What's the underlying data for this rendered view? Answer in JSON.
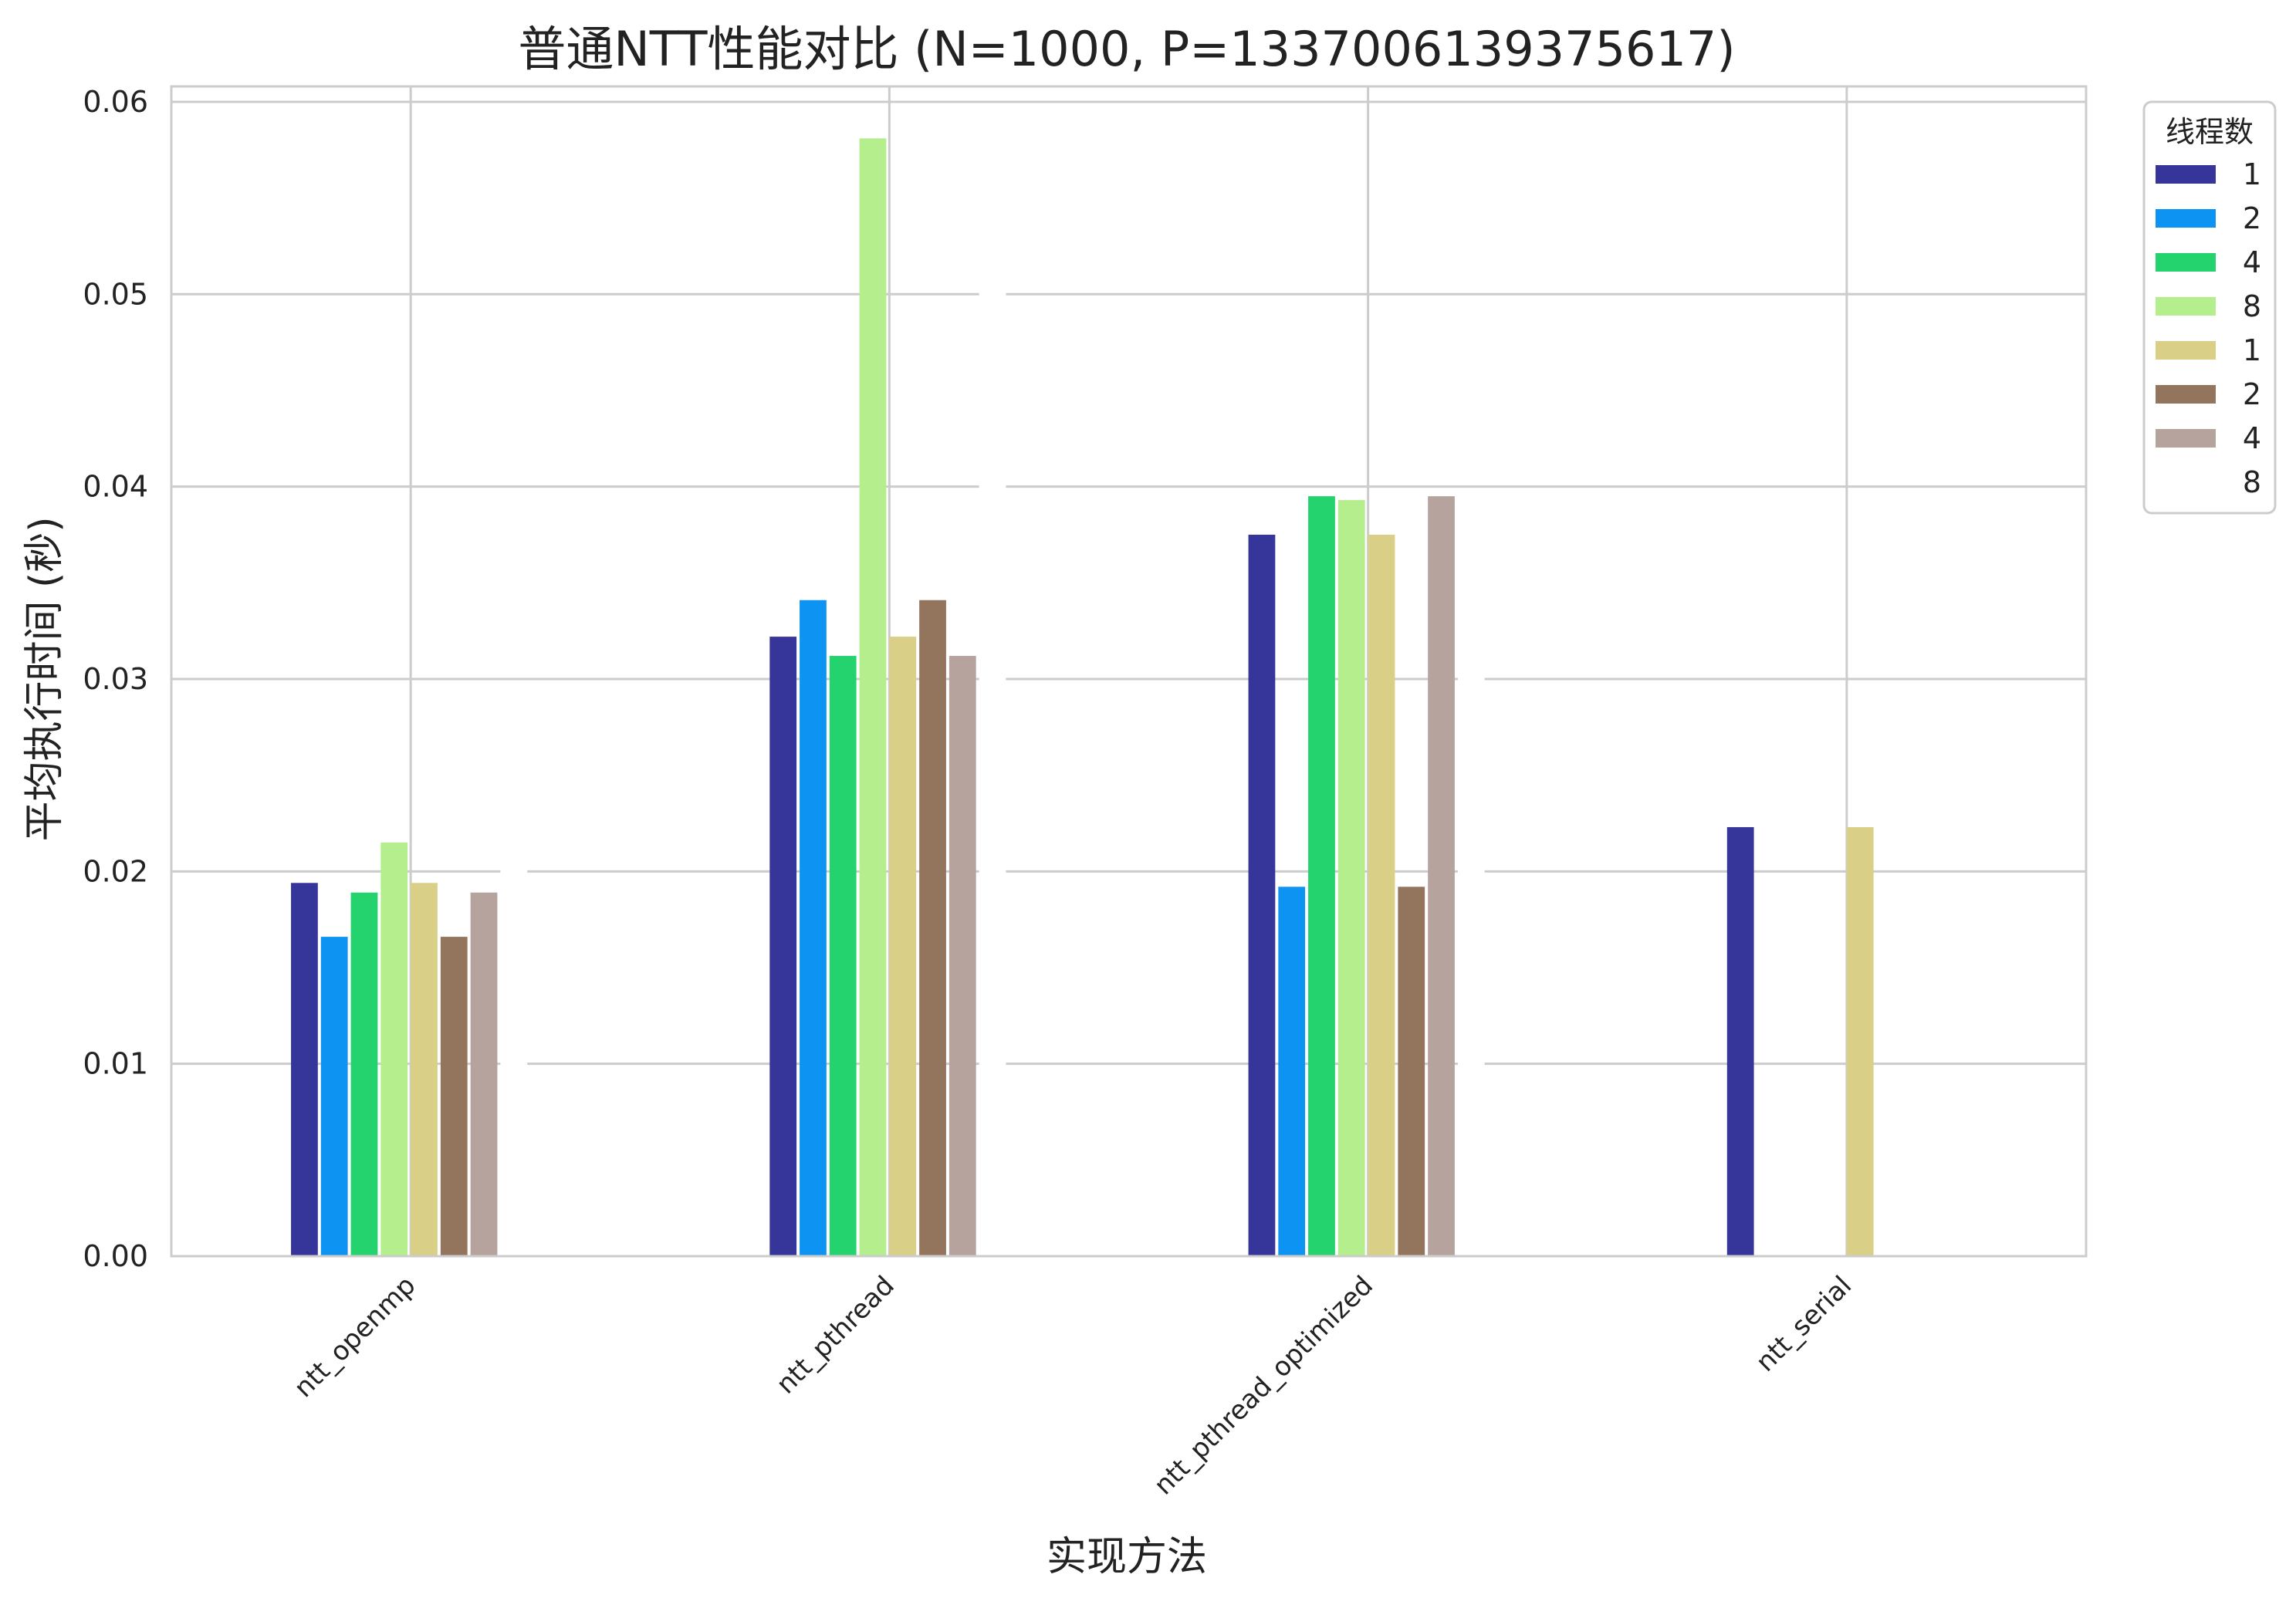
{
  "chart_data": {
    "type": "bar",
    "title": "普通NTT性能对比 (N=1000, P=1337006139375617)",
    "xlabel": "实现方法",
    "ylabel": "平均执行时间 (秒)",
    "ylim": [
      0,
      0.0608
    ],
    "yticks": [
      "0.00",
      "0.01",
      "0.02",
      "0.03",
      "0.04",
      "0.05",
      "0.06"
    ],
    "ytick_values": [
      0,
      0.01,
      0.02,
      0.03,
      0.04,
      0.05,
      0.06
    ],
    "grid": true,
    "categories": [
      "ntt_openmp",
      "ntt_pthread",
      "ntt_pthread_optimized",
      "ntt_serial"
    ],
    "legend": {
      "title": "线程数",
      "placement": "upper-right-outside"
    },
    "series": [
      {
        "name": "1",
        "color": "#36359a",
        "values": [
          0.0194,
          0.0322,
          0.0375,
          0.0223
        ]
      },
      {
        "name": "2",
        "color": "#0d94f2",
        "values": [
          0.0166,
          0.0341,
          0.0192,
          null
        ]
      },
      {
        "name": "4",
        "color": "#24d26e",
        "values": [
          0.0189,
          0.0312,
          0.0395,
          null
        ]
      },
      {
        "name": "8",
        "color": "#b5ee8c",
        "values": [
          0.0215,
          0.0581,
          0.0393,
          null
        ]
      },
      {
        "name": "1",
        "color": "#d9cf86",
        "values": [
          0.0194,
          0.0322,
          0.0375,
          0.0223
        ]
      },
      {
        "name": "2",
        "color": "#93755e",
        "values": [
          0.0166,
          0.0341,
          0.0192,
          null
        ]
      },
      {
        "name": "4",
        "color": "#b7a39d",
        "values": [
          0.0189,
          0.0312,
          0.0395,
          null
        ]
      },
      {
        "name": "8",
        "color": "#ffffff",
        "values": [
          0.0215,
          0.0581,
          0.0393,
          null
        ]
      }
    ]
  }
}
